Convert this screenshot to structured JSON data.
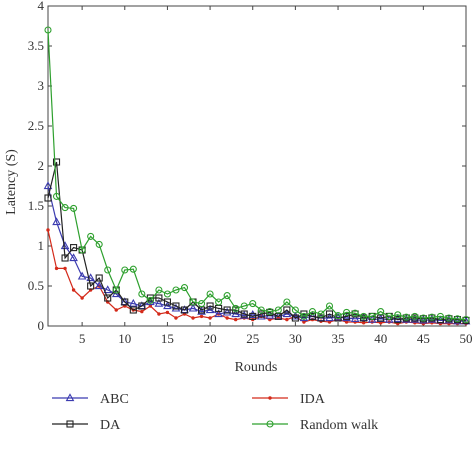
{
  "chart_data": {
    "type": "line",
    "title": "",
    "xlabel": "Rounds",
    "ylabel": "Latency (S)",
    "xlim": [
      1,
      50
    ],
    "ylim": [
      0,
      4
    ],
    "xticks": [
      5,
      10,
      15,
      20,
      25,
      30,
      35,
      40,
      45,
      50
    ],
    "yticks": [
      0,
      0.5,
      1,
      1.5,
      2,
      2.5,
      3,
      3.5,
      4
    ],
    "grid": false,
    "legend_position": "bottom",
    "x": [
      1,
      2,
      3,
      4,
      5,
      6,
      7,
      8,
      9,
      10,
      11,
      12,
      13,
      14,
      15,
      16,
      17,
      18,
      19,
      20,
      21,
      22,
      23,
      24,
      25,
      26,
      27,
      28,
      29,
      30,
      31,
      32,
      33,
      34,
      35,
      36,
      37,
      38,
      39,
      40,
      41,
      42,
      43,
      44,
      45,
      46,
      47,
      48,
      49,
      50
    ],
    "series": [
      {
        "name": "ABC",
        "color": "#3b3bb0",
        "marker": "triangle",
        "values": [
          1.75,
          1.3,
          1.0,
          0.85,
          0.62,
          0.6,
          0.5,
          0.45,
          0.4,
          0.3,
          0.28,
          0.25,
          0.3,
          0.28,
          0.25,
          0.22,
          0.2,
          0.22,
          0.18,
          0.2,
          0.15,
          0.17,
          0.15,
          0.13,
          0.14,
          0.12,
          0.13,
          0.12,
          0.15,
          0.12,
          0.1,
          0.12,
          0.1,
          0.1,
          0.11,
          0.1,
          0.09,
          0.1,
          0.08,
          0.09,
          0.08,
          0.09,
          0.08,
          0.08,
          0.07,
          0.08,
          0.07,
          0.07,
          0.06,
          0.06
        ]
      },
      {
        "name": "DA",
        "color": "#222222",
        "marker": "square",
        "values": [
          1.6,
          2.05,
          0.85,
          0.98,
          0.95,
          0.5,
          0.6,
          0.35,
          0.45,
          0.3,
          0.2,
          0.25,
          0.35,
          0.35,
          0.3,
          0.25,
          0.2,
          0.3,
          0.2,
          0.25,
          0.22,
          0.2,
          0.2,
          0.15,
          0.12,
          0.15,
          0.17,
          0.12,
          0.2,
          0.1,
          0.15,
          0.12,
          0.1,
          0.15,
          0.1,
          0.12,
          0.15,
          0.1,
          0.12,
          0.1,
          0.12,
          0.08,
          0.1,
          0.1,
          0.09,
          0.1,
          0.08,
          0.09,
          0.08,
          0.07
        ]
      },
      {
        "name": "IDA",
        "color": "#d42a1a",
        "marker": "dot",
        "values": [
          1.2,
          0.72,
          0.72,
          0.45,
          0.35,
          0.45,
          0.5,
          0.3,
          0.2,
          0.25,
          0.2,
          0.18,
          0.25,
          0.15,
          0.17,
          0.1,
          0.15,
          0.1,
          0.12,
          0.1,
          0.15,
          0.1,
          0.08,
          0.1,
          0.08,
          0.12,
          0.08,
          0.1,
          0.08,
          0.12,
          0.05,
          0.08,
          0.06,
          0.05,
          0.08,
          0.05,
          0.05,
          0.04,
          0.05,
          0.04,
          0.05,
          0.03,
          0.05,
          0.04,
          0.03,
          0.04,
          0.03,
          0.03,
          0.03,
          0.03
        ]
      },
      {
        "name": "Random walk",
        "color": "#2ea02e",
        "marker": "circle",
        "values": [
          3.7,
          1.62,
          1.48,
          1.47,
          0.95,
          1.12,
          1.02,
          0.7,
          0.45,
          0.7,
          0.71,
          0.4,
          0.32,
          0.45,
          0.4,
          0.45,
          0.48,
          0.3,
          0.28,
          0.4,
          0.3,
          0.38,
          0.22,
          0.25,
          0.28,
          0.2,
          0.18,
          0.2,
          0.3,
          0.2,
          0.12,
          0.18,
          0.15,
          0.25,
          0.13,
          0.17,
          0.16,
          0.12,
          0.12,
          0.18,
          0.12,
          0.14,
          0.11,
          0.12,
          0.1,
          0.11,
          0.12,
          0.1,
          0.09,
          0.08
        ]
      }
    ]
  }
}
